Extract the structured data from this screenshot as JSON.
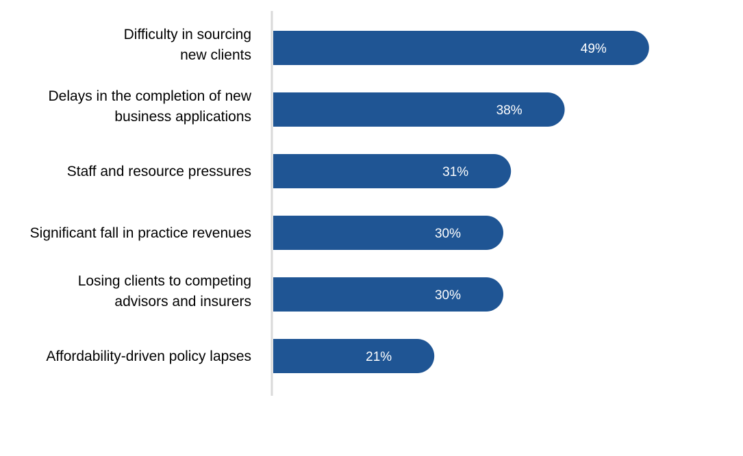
{
  "chart_data": {
    "type": "bar",
    "orientation": "horizontal",
    "categories": [
      [
        "Difficulty in sourcing",
        "new clients"
      ],
      [
        "Delays in the completion of new",
        "business applications"
      ],
      [
        "Staff and resource pressures"
      ],
      [
        "Significant fall in practice revenues"
      ],
      [
        "Losing clients to competing",
        "advisors and insurers"
      ],
      [
        "Affordability-driven policy lapses"
      ]
    ],
    "values": [
      49,
      38,
      31,
      30,
      30,
      21
    ],
    "data_labels": [
      "49%",
      "38%",
      "31%",
      "30%",
      "30%",
      "21%"
    ],
    "xlim": [
      0,
      100
    ],
    "grid": false,
    "legend": "none",
    "bar_color": "#1F5594",
    "axis_color": "#D9D9D9",
    "title": "",
    "xlabel": "",
    "ylabel": ""
  }
}
